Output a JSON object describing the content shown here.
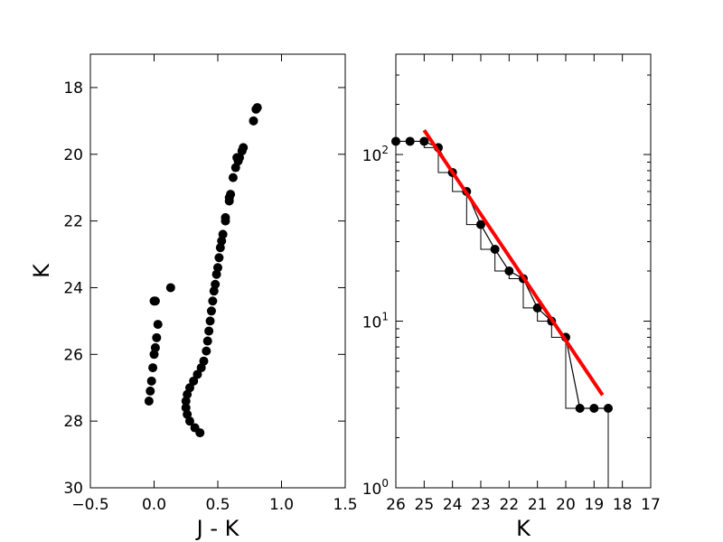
{
  "chart_data": [
    {
      "type": "scatter",
      "xlabel": "J - K",
      "ylabel": "K",
      "xlim": [
        -0.5,
        1.5
      ],
      "ylim": [
        30,
        17
      ],
      "y_inverted": true,
      "x_ticks": [
        -0.5,
        0.0,
        0.5,
        1.0,
        1.5
      ],
      "x_tick_labels": [
        "−0.5",
        "0.0",
        "0.5",
        "1.0",
        "1.5"
      ],
      "y_ticks": [
        18,
        20,
        22,
        24,
        26,
        28,
        30
      ],
      "y_tick_labels": [
        "18",
        "20",
        "22",
        "24",
        "26",
        "28",
        "30"
      ],
      "marker_color": "#000000",
      "grid": false,
      "series": [
        {
          "points": [
            [
              0.81,
              18.6
            ],
            [
              0.8,
              18.65
            ],
            [
              0.78,
              19.0
            ],
            [
              0.7,
              19.8
            ],
            [
              0.69,
              19.9
            ],
            [
              0.67,
              20.1
            ],
            [
              0.65,
              20.1
            ],
            [
              0.66,
              20.2
            ],
            [
              0.64,
              20.4
            ],
            [
              0.62,
              20.7
            ],
            [
              0.6,
              21.2
            ],
            [
              0.59,
              21.3
            ],
            [
              0.59,
              21.4
            ],
            [
              0.56,
              21.9
            ],
            [
              0.56,
              22.0
            ],
            [
              0.54,
              22.4
            ],
            [
              0.53,
              22.6
            ],
            [
              0.52,
              22.8
            ],
            [
              0.51,
              23.1
            ],
            [
              0.5,
              23.4
            ],
            [
              0.49,
              23.6
            ],
            [
              0.48,
              23.9
            ],
            [
              0.47,
              24.1
            ],
            [
              0.46,
              24.4
            ],
            [
              0.45,
              24.7
            ],
            [
              0.44,
              25.0
            ],
            [
              0.43,
              25.3
            ],
            [
              0.42,
              25.6
            ],
            [
              0.41,
              25.9
            ],
            [
              0.39,
              26.2
            ],
            [
              0.37,
              26.4
            ],
            [
              0.34,
              26.6
            ],
            [
              0.31,
              26.8
            ],
            [
              0.28,
              27.0
            ],
            [
              0.26,
              27.2
            ],
            [
              0.25,
              27.4
            ],
            [
              0.25,
              27.6
            ],
            [
              0.26,
              27.8
            ],
            [
              0.28,
              28.0
            ],
            [
              0.32,
              28.2
            ],
            [
              0.36,
              28.35
            ],
            [
              0.13,
              24.0
            ],
            [
              0.0,
              24.4
            ],
            [
              0.01,
              24.4
            ],
            [
              0.03,
              25.1
            ],
            [
              0.02,
              25.5
            ],
            [
              0.01,
              25.8
            ],
            [
              0.0,
              26.0
            ],
            [
              -0.01,
              26.4
            ],
            [
              -0.02,
              26.8
            ],
            [
              -0.03,
              27.1
            ],
            [
              -0.04,
              27.4
            ]
          ]
        }
      ]
    },
    {
      "type": "line",
      "xlabel": "K",
      "ylabel": "",
      "xlim": [
        26,
        17
      ],
      "ylim": [
        1,
        400
      ],
      "yscale": "log",
      "x_ticks": [
        26,
        25,
        24,
        23,
        22,
        21,
        20,
        19,
        18,
        17
      ],
      "x_tick_labels": [
        "26",
        "25",
        "24",
        "23",
        "22",
        "21",
        "20",
        "19",
        "18",
        "17"
      ],
      "y_ticks": [
        1,
        10,
        100
      ],
      "y_tick_base": "10",
      "y_tick_exponents": [
        "0",
        "1",
        "2"
      ],
      "grid": false,
      "series": [
        {
          "kind": "points-line",
          "color": "#000000",
          "x": [
            26.0,
            25.5,
            25.0,
            24.5,
            24.0,
            23.5,
            23.0,
            22.5,
            22.0,
            21.5,
            21.0,
            20.5,
            20.0,
            19.5,
            19.0,
            18.5
          ],
          "y": [
            120,
            120,
            120,
            110,
            78,
            60,
            38,
            27,
            20,
            18,
            12,
            10,
            8,
            3,
            3,
            3
          ]
        },
        {
          "kind": "step-histogram",
          "color": "#000000",
          "edges": [
            26.0,
            25.5,
            25.0,
            24.5,
            24.0,
            23.5,
            23.0,
            22.5,
            22.0,
            21.5,
            21.0,
            20.5,
            20.0,
            19.5,
            19.0,
            18.5
          ],
          "values": [
            120,
            120,
            110,
            78,
            60,
            38,
            27,
            20,
            18,
            12,
            10,
            8,
            3,
            3,
            3
          ]
        },
        {
          "kind": "fit-line",
          "color": "#ff0000",
          "x": [
            25.0,
            18.7
          ],
          "y": [
            140,
            3.6
          ]
        }
      ]
    }
  ]
}
